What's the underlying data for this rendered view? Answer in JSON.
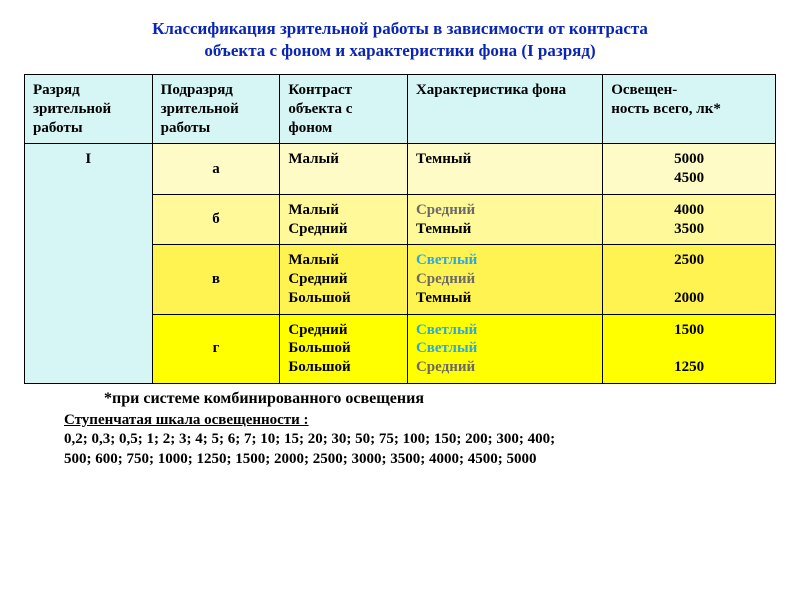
{
  "title_color": "#0a24b3",
  "title_line1": "Классификация зрительной работы в зависимости от контраста",
  "title_line2": "объекта с фоном и характеристики фона (I разряд)",
  "colors": {
    "header_bg": "#d6f5f5",
    "row_a_bg": "#fffbc7",
    "row_b_bg": "#fff99a",
    "row_v_bg": "#fff352",
    "row_g_bg": "#ffff00",
    "category_bg": "#d6f5f5",
    "text_dark": "#000000",
    "text_gray": "#6a6a6a",
    "text_light_blue": "#2aa9e0"
  },
  "columns": {
    "c1": "Разряд зрительной работы",
    "c2": "Подразряд зрительной работы",
    "c3": "Контраст объекта с фоном",
    "c4": "Характеристика фона",
    "c5": "Освещен-\nность всего, лк*"
  },
  "category_label": "I",
  "rows": [
    {
      "key": "a",
      "sub": "а",
      "contrast": [
        "Малый"
      ],
      "char": [
        {
          "t": "Темный",
          "c": "#000000"
        }
      ],
      "lux": [
        "5000",
        "4500"
      ]
    },
    {
      "key": "b",
      "sub": "б",
      "contrast": [
        "Малый",
        "Средний"
      ],
      "char": [
        {
          "t": "Средний",
          "c": "#6a6a6a"
        },
        {
          "t": "Темный",
          "c": "#000000"
        }
      ],
      "lux": [
        "4000",
        "3500"
      ]
    },
    {
      "key": "v",
      "sub": "в",
      "contrast": [
        "Малый",
        "Средний",
        "Большой"
      ],
      "char": [
        {
          "t": "Светлый",
          "c": "#2aa9e0"
        },
        {
          "t": "Средний",
          "c": "#6a6a6a"
        },
        {
          "t": "Темный",
          "c": "#000000"
        }
      ],
      "lux": [
        "2500",
        "",
        "2000"
      ]
    },
    {
      "key": "g",
      "sub": "г",
      "contrast": [
        "Средний",
        "Большой",
        "Большой"
      ],
      "char": [
        {
          "t": "Светлый",
          "c": "#2aa9e0"
        },
        {
          "t": "Светлый",
          "c": "#2aa9e0"
        },
        {
          "t": "Средний",
          "c": "#6a6a6a"
        }
      ],
      "lux": [
        "1500",
        "",
        "1250"
      ]
    }
  ],
  "footnote": "*при системе комбинированного освещения",
  "scale_title": "Ступенчатая шкала освещенности :",
  "scale_line1": "0,2; 0,3; 0,5; 1; 2; 3; 4; 5; 6; 7; 10; 15; 20; 30; 50; 75; 100; 150; 200; 300; 400;",
  "scale_line2": "500; 600; 750; 1000; 1250; 1500; 2000; 2500; 3000; 3500; 4000; 4500; 5000"
}
